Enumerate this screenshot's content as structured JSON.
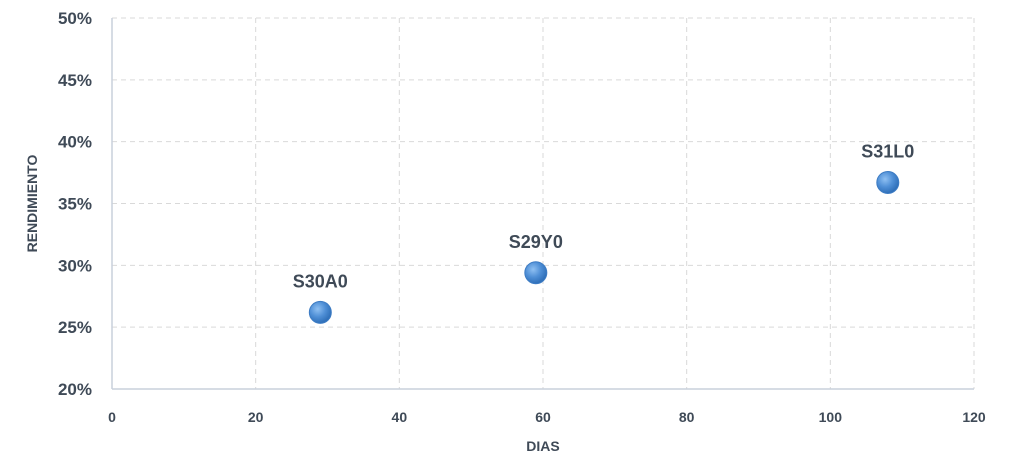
{
  "chart_data": {
    "type": "scatter",
    "title": "",
    "xlabel": "DIAS",
    "ylabel": "RENDIMIENTO",
    "xlim": [
      0,
      120
    ],
    "ylim": [
      0.2,
      0.5
    ],
    "x_ticks": [
      0,
      20,
      40,
      60,
      80,
      100,
      120
    ],
    "x_tick_labels": [
      "0",
      "20",
      "40",
      "60",
      "80",
      "100",
      "120"
    ],
    "y_ticks": [
      0.2,
      0.25,
      0.3,
      0.35,
      0.4,
      0.45,
      0.5
    ],
    "y_tick_labels": [
      "20%",
      "25%",
      "30%",
      "35%",
      "40%",
      "45%",
      "50%"
    ],
    "grid": true,
    "legend": "none",
    "marker_color": "#4f8fd6",
    "points": [
      {
        "label": "S30A0",
        "x": 29,
        "y": 0.262
      },
      {
        "label": "S29Y0",
        "x": 59,
        "y": 0.294
      },
      {
        "label": "S31L0",
        "x": 108,
        "y": 0.367
      }
    ]
  }
}
